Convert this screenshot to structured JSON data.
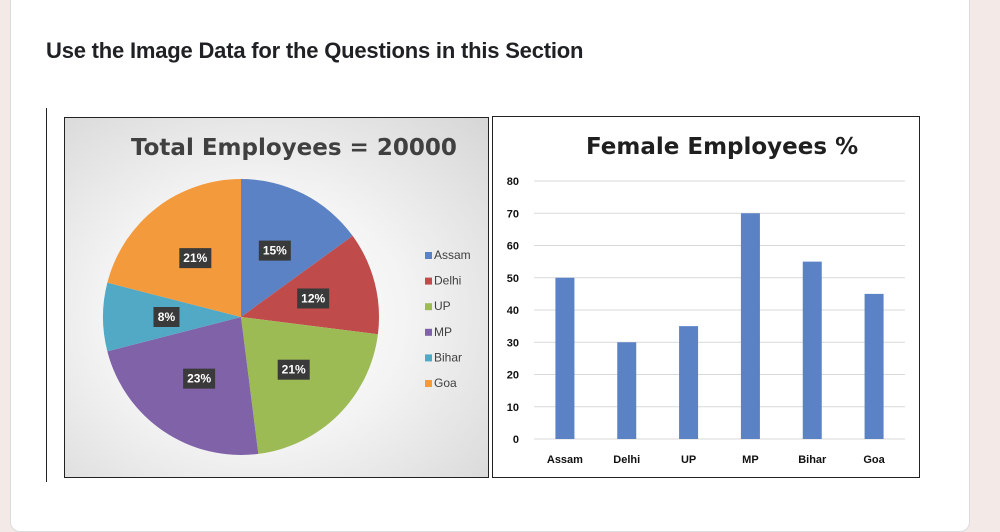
{
  "page": {
    "section_title": "Use the Image Data for the Questions in this Section"
  },
  "chart_data": [
    {
      "type": "pie",
      "title": "Total Employees  = 20000",
      "categories": [
        "Assam",
        "Delhi",
        "UP",
        "MP",
        "Bihar",
        "Goa"
      ],
      "values": [
        15,
        12,
        21,
        23,
        8,
        21
      ],
      "labels": [
        "15%",
        "12%",
        "21%",
        "23%",
        "8%",
        "21%"
      ],
      "colors": [
        "#5a82c4",
        "#c04b4b",
        "#9dbb55",
        "#7f62a7",
        "#52a9c5",
        "#f29a3c"
      ],
      "legend": "right"
    },
    {
      "type": "bar",
      "title": "Female Employees %",
      "categories": [
        "Assam",
        "Delhi",
        "UP",
        "MP",
        "Bihar",
        "Goa"
      ],
      "values": [
        50,
        30,
        35,
        70,
        55,
        45
      ],
      "yticks": [
        "0",
        "10",
        "20",
        "30",
        "40",
        "50",
        "60",
        "70",
        "80"
      ],
      "ylim": [
        0,
        80
      ],
      "grid": true,
      "bar_color": "#5a82c4"
    }
  ]
}
